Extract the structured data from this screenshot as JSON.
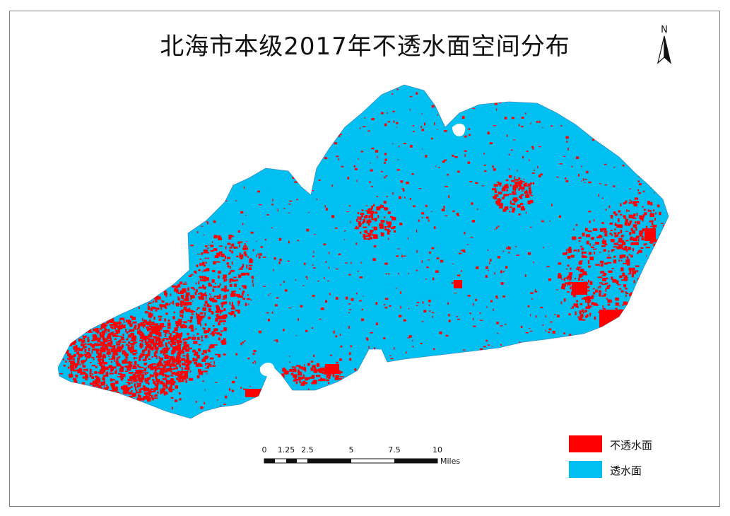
{
  "title": "北海市本级2017年不透水面空间分布",
  "north_arrow": {
    "label": "N"
  },
  "scale_bar": {
    "ticks": [
      "0",
      "1.25",
      "2.5",
      "5",
      "7.5",
      "10"
    ],
    "units": "Miles"
  },
  "legend": {
    "items": [
      {
        "label": "不透水面",
        "color": "#ff0000"
      },
      {
        "label": "透水面",
        "color": "#00c0f2"
      }
    ]
  },
  "colors": {
    "impervious": "#ff0000",
    "pervious": "#00c0f2",
    "frame": "#7f7f7f"
  }
}
